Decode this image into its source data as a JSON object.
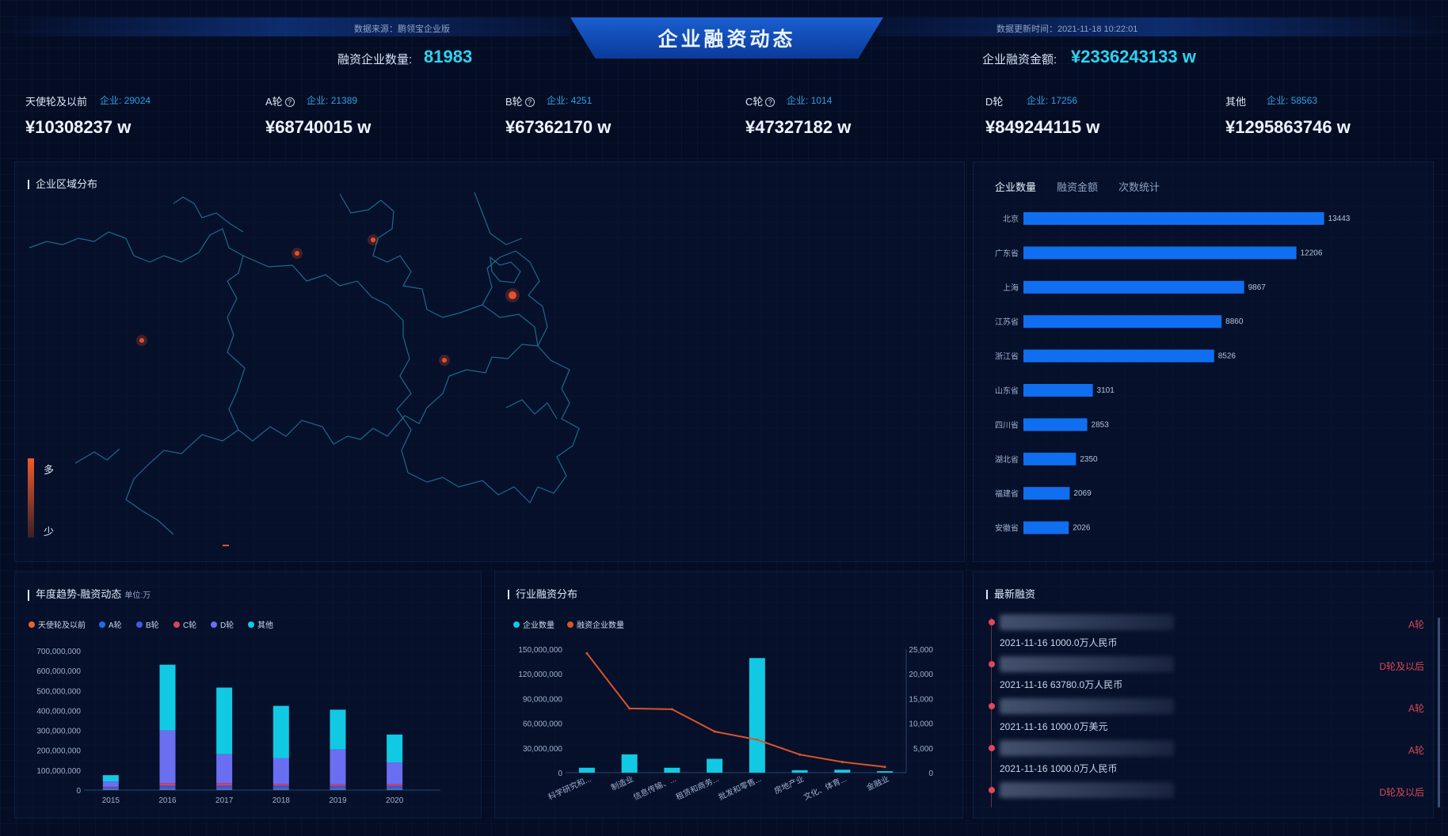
{
  "header": {
    "title": "企业融资动态",
    "source_text": "数据来源：鹏领宝企业版",
    "update_text": "数据更新时间：2021-11-18 10:22:01",
    "left_stat_label": "融资企业数量:",
    "left_stat_value": "81983",
    "right_stat_label": "企业融资金额:",
    "right_stat_value": "¥2336243133 w"
  },
  "rounds": [
    {
      "name": "天使轮及以前",
      "has_help": false,
      "ent_label": "企业:",
      "ent_count": "29024",
      "amount": "¥10308237 w"
    },
    {
      "name": "A轮",
      "has_help": true,
      "ent_label": "企业:",
      "ent_count": "21389",
      "amount": "¥68740015 w"
    },
    {
      "name": "B轮",
      "has_help": true,
      "ent_label": "企业:",
      "ent_count": "4251",
      "amount": "¥67362170 w"
    },
    {
      "name": "C轮",
      "has_help": true,
      "ent_label": "企业:",
      "ent_count": "1014",
      "amount": "¥47327182 w"
    },
    {
      "name": "D轮",
      "has_help": false,
      "ent_label": "企业:",
      "ent_count": "17256",
      "amount": "¥849244115 w"
    },
    {
      "name": "其他",
      "has_help": false,
      "ent_label": "企业:",
      "ent_count": "58563",
      "amount": "¥1295863746 w"
    }
  ],
  "map_panel": {
    "title": "企业区域分布",
    "legend_high": "多",
    "legend_low": "少",
    "colors": {
      "outline": "#1f7a9c",
      "dot": "#e8502a"
    }
  },
  "region_panel": {
    "tabs": [
      "企业数量",
      "融资金额",
      "次数统计"
    ],
    "active_tab": 0
  },
  "yearly_panel": {
    "title": "年度趋势-融资动态",
    "unit": "单位:万"
  },
  "industry_panel": {
    "title": "行业融资分布"
  },
  "latest_panel": {
    "title": "最新融资",
    "items": [
      {
        "date": "2021-11-16 1000.0万人民币",
        "round": "A轮"
      },
      {
        "date": "2021-11-16 63780.0万人民币",
        "round": "D轮及以后"
      },
      {
        "date": "2021-11-16 1000.0万美元",
        "round": "A轮"
      },
      {
        "date": "2021-11-16 1000.0万人民币",
        "round": "A轮"
      },
      {
        "date": "",
        "round": "D轮及以后"
      }
    ]
  },
  "chart_data": [
    {
      "id": "region",
      "type": "bar",
      "orientation": "horizontal",
      "categories": [
        "北京",
        "广东省",
        "上海",
        "江苏省",
        "浙江省",
        "山东省",
        "四川省",
        "湖北省",
        "福建省",
        "安徽省"
      ],
      "values": [
        13443,
        12206,
        9867,
        8860,
        8526,
        3101,
        2853,
        2350,
        2069,
        2026
      ],
      "color": "#0f6ff0",
      "xlim": [
        0,
        17000
      ]
    },
    {
      "id": "yearly",
      "type": "bar",
      "stacked": true,
      "categories": [
        "2015",
        "2016",
        "2017",
        "2018",
        "2019",
        "2020"
      ],
      "ylim": [
        0,
        700000000
      ],
      "yticks": [
        "0",
        "100,000,000",
        "200,000,000",
        "300,000,000",
        "400,000,000",
        "500,000,000",
        "600,000,000",
        "700,000,000"
      ],
      "series": [
        {
          "name": "天使轮及以前",
          "color": "#e8652a",
          "values": [
            2000000,
            3000000,
            3000000,
            3000000,
            3000000,
            3000000
          ]
        },
        {
          "name": "A轮",
          "color": "#1f6fe8",
          "values": [
            8000000,
            10000000,
            10000000,
            10000000,
            10000000,
            10000000
          ]
        },
        {
          "name": "B轮",
          "color": "#4358e0",
          "values": [
            5000000,
            10000000,
            10000000,
            10000000,
            8000000,
            8000000
          ]
        },
        {
          "name": "C轮",
          "color": "#d9435f",
          "values": [
            3000000,
            12000000,
            12000000,
            8000000,
            8000000,
            8000000
          ]
        },
        {
          "name": "D轮",
          "color": "#6a6ff2",
          "values": [
            25000000,
            265000000,
            145000000,
            130000000,
            175000000,
            110000000
          ]
        },
        {
          "name": "其他",
          "color": "#12c9e4",
          "values": [
            32000000,
            330000000,
            335000000,
            262000000,
            200000000,
            140000000
          ]
        }
      ]
    },
    {
      "id": "industry",
      "type": "bar+line",
      "categories": [
        "科学研究和...",
        "制造业",
        "信息传输、...",
        "租赁和商务...",
        "批发和零售...",
        "房地产业",
        "文化、体育...",
        "金融业"
      ],
      "series": [
        {
          "name": "企业数量",
          "type": "bar",
          "axis": "right",
          "color": "#12c9e4",
          "values": [
            1000,
            3700,
            1000,
            2800,
            23200,
            500,
            600,
            300
          ]
        },
        {
          "name": "融资企业数量",
          "type": "line",
          "axis": "left",
          "color": "#d8542c",
          "values": [
            145000000,
            78000000,
            77000000,
            50000000,
            40000000,
            22000000,
            13000000,
            7000000
          ]
        }
      ],
      "ylim_left": [
        0,
        150000000
      ],
      "ylim_right": [
        0,
        25000
      ],
      "yticks_left": [
        "0",
        "30,000,000",
        "60,000,000",
        "90,000,000",
        "120,000,000",
        "150,000,000"
      ],
      "yticks_right": [
        "0",
        "5,000",
        "10,000",
        "15,000",
        "20,000",
        "25,000"
      ]
    }
  ]
}
